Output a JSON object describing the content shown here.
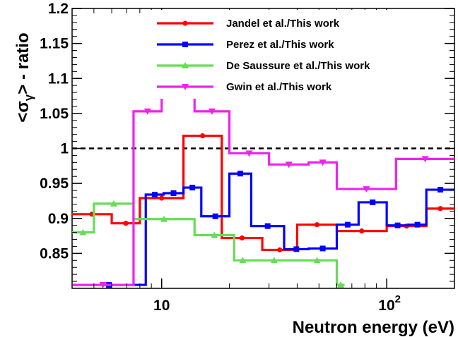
{
  "chart_data": {
    "type": "line",
    "style": "step",
    "xlabel": "Neutron energy (eV)",
    "ylabel_prefix": "<σ",
    "ylabel_sub": "γ",
    "ylabel_suffix": "> - ratio",
    "xscale": "log",
    "xlim": [
      4,
      200
    ],
    "ylim": [
      0.8,
      1.2
    ],
    "yticks": [
      "0.85",
      "0.9",
      "0.95",
      "1",
      "1.05",
      "1.1",
      "1.15",
      "1.2"
    ],
    "xticks": [
      {
        "value": 10,
        "base": "10",
        "exp": ""
      },
      {
        "value": 100,
        "base": "10",
        "exp": "2"
      }
    ],
    "reference_line": 1.0,
    "legend_position": "top",
    "series": [
      {
        "name": "Jandel et al./This work",
        "color": "#ff0000",
        "marker": "circle",
        "edges": [
          4,
          6,
          8,
          12.5,
          18.5,
          28,
          40,
          60,
          100,
          150,
          200
        ],
        "values": [
          0.906,
          0.893,
          0.929,
          1.018,
          0.872,
          0.855,
          0.891,
          0.882,
          0.889,
          0.914
        ]
      },
      {
        "name": "Perez et al./This work",
        "color": "#0000ff",
        "marker": "square",
        "edges": [
          4,
          8.5,
          10.2,
          12.5,
          15,
          20,
          25,
          35,
          45,
          60,
          75,
          100,
          125,
          150,
          200
        ],
        "values": [
          0.805,
          0.934,
          0.936,
          0.944,
          0.903,
          0.964,
          0.889,
          0.856,
          0.857,
          0.891,
          0.923,
          0.89,
          0.891,
          0.941
        ]
      },
      {
        "name": "De Saussure et al./This work",
        "color": "#66dd55",
        "marker": "triangle-up",
        "edges": [
          4,
          5,
          7.5,
          14,
          21,
          25,
          40,
          60,
          65
        ],
        "values": [
          0.88,
          0.921,
          0.899,
          0.876,
          0.84,
          0.84,
          0.84,
          0.805
        ]
      },
      {
        "name": "Gwin et al./This work",
        "color": "#ee22ee",
        "marker": "triangle-down",
        "edges": [
          4,
          7.5,
          10,
          14,
          20,
          30,
          45,
          60,
          110,
          200
        ],
        "values": [
          0.805,
          1.053,
          1.082,
          1.053,
          0.993,
          0.977,
          0.98,
          0.942,
          0.985
        ]
      }
    ]
  }
}
